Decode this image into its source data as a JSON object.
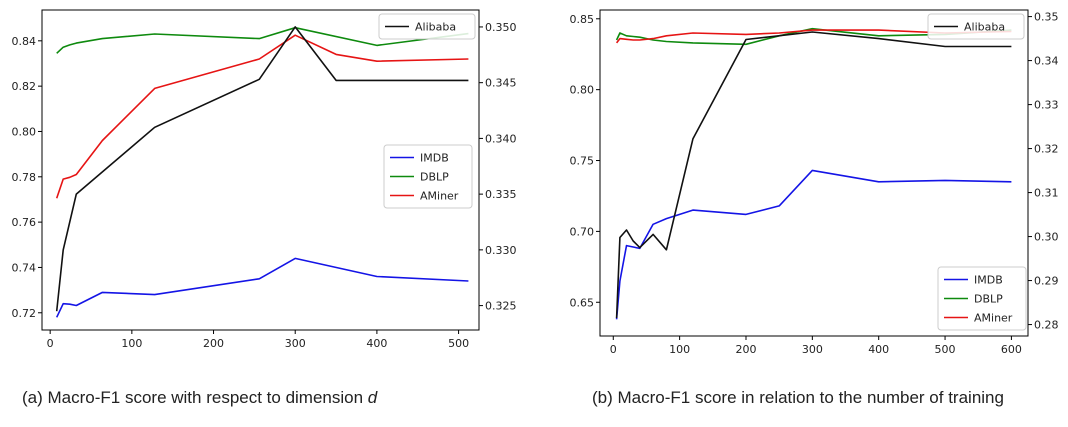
{
  "chart_data": [
    {
      "type": "line",
      "axes": {
        "x": {
          "range": [
            -10,
            525
          ],
          "ticks": [
            0,
            100,
            200,
            300,
            400,
            500
          ]
        },
        "y_left": {
          "range": [
            0.7124,
            0.8536
          ],
          "ticks": [
            0.72,
            0.74,
            0.76,
            0.78,
            0.8,
            0.82,
            0.84
          ]
        },
        "y_right": {
          "range": [
            0.32281,
            0.35152
          ],
          "ticks": [
            0.325,
            0.33,
            0.335,
            0.34,
            0.345,
            0.35
          ]
        }
      },
      "series": [
        {
          "name": "IMDB",
          "axis": "left",
          "color": "#1414e6",
          "x": [
            8,
            16,
            24,
            32,
            64,
            128,
            256,
            300,
            400,
            512
          ],
          "y": [
            0.718,
            0.724,
            0.7238,
            0.7232,
            0.729,
            0.728,
            0.735,
            0.744,
            0.736,
            0.734
          ]
        },
        {
          "name": "DBLP",
          "axis": "left",
          "color": "#0e8a0e",
          "x": [
            8,
            16,
            24,
            32,
            64,
            128,
            256,
            300,
            400,
            512
          ],
          "y": [
            0.8345,
            0.8372,
            0.8382,
            0.839,
            0.841,
            0.843,
            0.841,
            0.8458,
            0.838,
            0.8432
          ]
        },
        {
          "name": "AMiner",
          "axis": "left",
          "color": "#e61414",
          "x": [
            8,
            16,
            24,
            32,
            64,
            128,
            256,
            300,
            350,
            400,
            512
          ],
          "y": [
            0.7705,
            0.779,
            0.7798,
            0.781,
            0.796,
            0.819,
            0.832,
            0.8425,
            0.834,
            0.831,
            0.832
          ]
        },
        {
          "name": "Alibaba",
          "axis": "right",
          "color": "#111111",
          "x": [
            8,
            16,
            32,
            128,
            256,
            300,
            350,
            512
          ],
          "y": [
            0.3245,
            0.33,
            0.335,
            0.341,
            0.3453,
            0.35,
            0.3452,
            0.3452
          ]
        }
      ],
      "legend_upper": [
        "Alibaba"
      ],
      "legend_lower": [
        "IMDB",
        "DBLP",
        "AMiner"
      ],
      "caption_prefix": "(a) Macro-F1 score with respect to dimension ",
      "caption_var": "d"
    },
    {
      "type": "line",
      "axes": {
        "x": {
          "range": [
            -20,
            625
          ],
          "ticks": [
            0,
            100,
            200,
            300,
            400,
            500,
            600
          ]
        },
        "y_left": {
          "range": [
            0.6262,
            0.8562
          ],
          "ticks": [
            0.65,
            0.7,
            0.75,
            0.8,
            0.85
          ]
        },
        "y_right": {
          "range": [
            0.2774,
            0.3515
          ],
          "ticks": [
            0.28,
            0.29,
            0.3,
            0.31,
            0.32,
            0.33,
            0.34,
            0.35
          ]
        }
      },
      "series": [
        {
          "name": "IMDB",
          "axis": "left",
          "color": "#1414e6",
          "x": [
            5,
            10,
            20,
            30,
            40,
            60,
            80,
            120,
            200,
            250,
            300,
            400,
            500,
            600
          ],
          "y": [
            0.638,
            0.665,
            0.69,
            0.689,
            0.688,
            0.705,
            0.709,
            0.715,
            0.712,
            0.718,
            0.743,
            0.735,
            0.736,
            0.735
          ]
        },
        {
          "name": "DBLP",
          "axis": "left",
          "color": "#0e8a0e",
          "x": [
            5,
            10,
            20,
            30,
            40,
            60,
            80,
            120,
            200,
            250,
            300,
            400,
            500,
            600
          ],
          "y": [
            0.835,
            0.84,
            0.838,
            0.8375,
            0.837,
            0.835,
            0.834,
            0.833,
            0.832,
            0.838,
            0.843,
            0.838,
            0.839,
            0.842
          ]
        },
        {
          "name": "AMiner",
          "axis": "left",
          "color": "#e61414",
          "x": [
            5,
            10,
            20,
            30,
            40,
            60,
            80,
            120,
            200,
            250,
            300,
            400,
            500,
            600
          ],
          "y": [
            0.833,
            0.836,
            0.8355,
            0.835,
            0.835,
            0.836,
            0.838,
            0.84,
            0.839,
            0.84,
            0.842,
            0.842,
            0.84,
            0.841
          ]
        },
        {
          "name": "Alibaba",
          "axis": "right",
          "color": "#111111",
          "x": [
            5,
            10,
            20,
            30,
            40,
            60,
            80,
            120,
            200,
            300,
            400,
            500,
            600
          ],
          "y": [
            0.2815,
            0.2998,
            0.3015,
            0.299,
            0.2975,
            0.3005,
            0.297,
            0.3222,
            0.3448,
            0.3465,
            0.345,
            0.3432,
            0.3432
          ]
        }
      ],
      "legend_upper": [
        "Alibaba"
      ],
      "legend_lower": [
        "IMDB",
        "DBLP",
        "AMiner"
      ],
      "caption_prefix": "(b) Macro-F1 score in relation to the number of training",
      "caption_var": ""
    }
  ]
}
